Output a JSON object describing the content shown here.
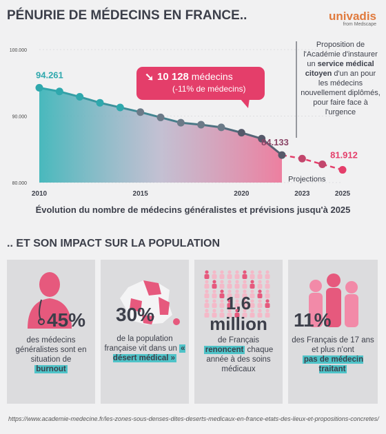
{
  "title": "PÉNURIE DE MÉDECINS EN FRANCE..",
  "brand": {
    "name": "univadis",
    "sub": "from Medscape"
  },
  "proposal": {
    "pre": "Proposition de l'Académie d'instaurer un",
    "bold": "service médical citoyen",
    "post": "d'un an pour les médecins nouvellement diplômés, pour faire face à l'urgence"
  },
  "callout": {
    "number": "10 128",
    "unit": "médecins",
    "pct": "(-11% de médecins)"
  },
  "colors": {
    "teal": "#3fb6ba",
    "pink": "#e43e6a",
    "dark": "#55596a"
  },
  "chart_data": {
    "type": "line",
    "x": [
      2010,
      2011,
      2012,
      2013,
      2014,
      2015,
      2016,
      2017,
      2018,
      2019,
      2020,
      2021,
      2022,
      2023,
      2024,
      2025
    ],
    "series": [
      {
        "name": "Évolution du nombre de médecins généralistes",
        "values": [
          94261,
          93700,
          92900,
          92000,
          91300,
          90600,
          89800,
          89000,
          88700,
          88300,
          87500,
          86600,
          84133,
          null,
          null,
          null
        ]
      },
      {
        "name": "Projections",
        "values": [
          null,
          null,
          null,
          null,
          null,
          null,
          null,
          null,
          null,
          null,
          null,
          null,
          84133,
          83600,
          82750,
          81912
        ]
      }
    ],
    "labels": {
      "start": "94.261",
      "actual_end": "84.133",
      "proj_end": "81.912",
      "projections": "Projections"
    },
    "yticks": [
      "100.000",
      "90.000",
      "80.000"
    ],
    "ytick_values": [
      100000,
      90000,
      80000
    ],
    "xticks": [
      "2010",
      "2015",
      "2020",
      "2023",
      "2025"
    ],
    "xtick_values": [
      2010,
      2015,
      2020,
      2023,
      2025
    ],
    "ylim": [
      80000,
      100000
    ],
    "xlim": [
      2010,
      2025
    ],
    "caption": "Évolution du nombre de médecins généralistes et prévisions jusqu'à 2025"
  },
  "section2": ".. ET SON IMPACT SUR LA POPULATION",
  "cards": [
    {
      "big": "45%",
      "text": "des médecins généralistes sont en situation de",
      "hl": "burnout"
    },
    {
      "big": "30%",
      "text": "de la population française vit dans un",
      "hl": "« désert médical »"
    },
    {
      "big": "1,6 million",
      "text1": "de Français",
      "hl": "renoncent",
      "text2": "chaque année à des soins médicaux"
    },
    {
      "big": "11%",
      "text": "des Français de 17 ans et plus n'ont",
      "hl": "pas de médecin traitant"
    }
  ],
  "url": "https://www.academie-medecine.fr/les-zones-sous-denses-dites-deserts-medicaux-en-france-etats-des-lieux-et-propositions-concretes/"
}
